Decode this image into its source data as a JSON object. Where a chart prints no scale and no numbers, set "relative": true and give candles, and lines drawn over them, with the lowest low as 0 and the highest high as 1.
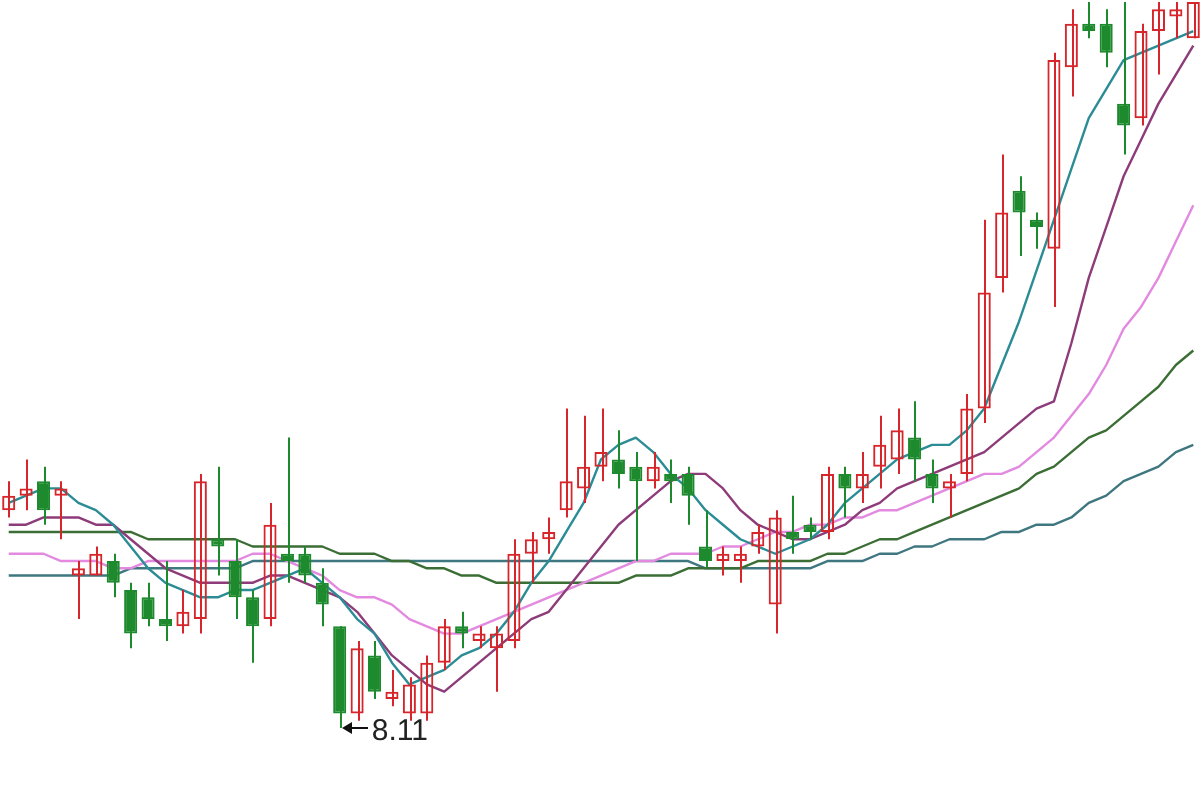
{
  "chart_data": {
    "type": "candlestick",
    "relative": true,
    "categories": [
      null,
      null,
      null,
      null,
      null,
      null,
      null,
      null,
      null,
      null,
      null,
      null,
      null,
      null,
      null,
      null,
      null,
      null,
      null,
      null,
      null,
      null,
      null,
      null,
      null,
      null,
      null,
      null,
      null,
      null,
      null,
      null,
      null,
      null,
      null,
      null,
      null,
      null,
      null,
      null,
      null,
      null,
      null,
      null,
      null,
      null,
      null,
      null,
      null,
      null,
      null,
      null,
      null,
      null,
      null,
      null,
      null,
      null,
      null,
      null,
      null,
      null,
      null,
      null,
      null,
      null,
      null,
      null,
      null
    ],
    "ohlc": [
      [
        0.3,
        0.34,
        0.29,
        0.32
      ],
      [
        0.32,
        0.37,
        0.3,
        0.33
      ],
      [
        0.34,
        0.36,
        0.28,
        0.3
      ],
      [
        0.32,
        0.34,
        0.26,
        0.33
      ],
      [
        0.21,
        0.23,
        0.15,
        0.22
      ],
      [
        0.21,
        0.25,
        0.21,
        0.24
      ],
      [
        0.23,
        0.24,
        0.18,
        0.2
      ],
      [
        0.19,
        0.2,
        0.11,
        0.13
      ],
      [
        0.18,
        0.2,
        0.14,
        0.15
      ],
      [
        0.15,
        0.23,
        0.12,
        0.14
      ],
      [
        0.14,
        0.19,
        0.13,
        0.16
      ],
      [
        0.15,
        0.35,
        0.13,
        0.34
      ],
      [
        0.26,
        0.36,
        0.21,
        0.25
      ],
      [
        0.23,
        0.26,
        0.15,
        0.18
      ],
      [
        0.18,
        0.19,
        0.09,
        0.14
      ],
      [
        0.15,
        0.31,
        0.14,
        0.28
      ],
      [
        0.24,
        0.4,
        0.2,
        0.23
      ],
      [
        0.24,
        0.25,
        0.2,
        0.21
      ],
      [
        0.2,
        0.22,
        0.14,
        0.17
      ],
      [
        0.14,
        0.14,
        0,
        0.02
      ],
      [
        0.02,
        0.12,
        0.01,
        0.11
      ],
      [
        0.1,
        0.12,
        0.04,
        0.05
      ],
      [
        0.04,
        0.08,
        0.03,
        0.05
      ],
      [
        0.02,
        0.07,
        0.01,
        0.06
      ],
      [
        0.02,
        0.1,
        0.01,
        0.09
      ],
      [
        0.09,
        0.15,
        0.08,
        0.14
      ],
      [
        0.14,
        0.16,
        0.11,
        0.13
      ],
      [
        0.12,
        0.14,
        0.11,
        0.13
      ],
      [
        0.11,
        0.14,
        0.05,
        0.13
      ],
      [
        0.12,
        0.26,
        0.11,
        0.24
      ],
      [
        0.24,
        0.27,
        0.2,
        0.26
      ],
      [
        0.26,
        0.29,
        0.24,
        0.27
      ],
      [
        0.3,
        0.44,
        0.29,
        0.34
      ],
      [
        0.33,
        0.43,
        0.31,
        0.36
      ],
      [
        0.36,
        0.44,
        0.34,
        0.38
      ],
      [
        0.37,
        0.41,
        0.33,
        0.35
      ],
      [
        0.36,
        0.38,
        0.23,
        0.34
      ],
      [
        0.34,
        0.38,
        0.33,
        0.36
      ],
      [
        0.35,
        0.37,
        0.31,
        0.34
      ],
      [
        0.35,
        0.36,
        0.28,
        0.32
      ],
      [
        0.25,
        0.3,
        0.22,
        0.23
      ],
      [
        0.23,
        0.25,
        0.21,
        0.24
      ],
      [
        0.23,
        0.25,
        0.2,
        0.24
      ],
      [
        0.25,
        0.28,
        0.24,
        0.27
      ],
      [
        0.17,
        0.3,
        0.13,
        0.29
      ],
      [
        0.27,
        0.32,
        0.24,
        0.26
      ],
      [
        0.28,
        0.29,
        0.26,
        0.27
      ],
      [
        0.27,
        0.36,
        0.26,
        0.35
      ],
      [
        0.35,
        0.36,
        0.29,
        0.33
      ],
      [
        0.33,
        0.38,
        0.31,
        0.35
      ],
      [
        0.36,
        0.43,
        0.33,
        0.39
      ],
      [
        0.37,
        0.44,
        0.35,
        0.41
      ],
      [
        0.4,
        0.45,
        0.34,
        0.37
      ],
      [
        0.35,
        0.37,
        0.31,
        0.33
      ],
      [
        0.33,
        0.35,
        0.29,
        0.34
      ],
      [
        0.35,
        0.46,
        0.34,
        0.44
      ],
      [
        0.44,
        0.7,
        0.42,
        0.6
      ],
      [
        0.62,
        0.79,
        0.6,
        0.71
      ],
      [
        0.74,
        0.76,
        0.65,
        0.71
      ],
      [
        0.7,
        0.71,
        0.66,
        0.69
      ],
      [
        0.66,
        0.93,
        0.58,
        0.92
      ],
      [
        0.91,
        0.99,
        0.87,
        0.97
      ],
      [
        0.97,
        1,
        0.95,
        0.96
      ],
      [
        0.97,
        0.99,
        0.91,
        0.93
      ],
      [
        0.86,
        1,
        0.79,
        0.83
      ],
      [
        0.84,
        0.97,
        0.83,
        0.96
      ],
      [
        0.96,
        1,
        0.9,
        0.99
      ],
      [
        0.98,
        1,
        0.95,
        0.99
      ],
      [
        0.95,
        1,
        0.95,
        1
      ]
    ],
    "colors": [
      "#d7262b",
      "#d7262b",
      "#1e8a2e",
      "#d7262b",
      "#d7262b",
      "#d7262b",
      "#1e8a2e",
      "#1e8a2e",
      "#1e8a2e",
      "#1e8a2e",
      "#d7262b",
      "#d7262b",
      "#1e8a2e",
      "#1e8a2e",
      "#1e8a2e",
      "#d7262b",
      "#1e8a2e",
      "#1e8a2e",
      "#1e8a2e",
      "#1e8a2e",
      "#d7262b",
      "#1e8a2e",
      "#d7262b",
      "#d7262b",
      "#d7262b",
      "#d7262b",
      "#1e8a2e",
      "#d7262b",
      "#d7262b",
      "#d7262b",
      "#d7262b",
      "#d7262b",
      "#d7262b",
      "#d7262b",
      "#d7262b",
      "#1e8a2e",
      "#1e8a2e",
      "#d7262b",
      "#1e8a2e",
      "#1e8a2e",
      "#1e8a2e",
      "#d7262b",
      "#d7262b",
      "#d7262b",
      "#d7262b",
      "#1e8a2e",
      "#1e8a2e",
      "#d7262b",
      "#1e8a2e",
      "#d7262b",
      "#d7262b",
      "#d7262b",
      "#1e8a2e",
      "#1e8a2e",
      "#d7262b",
      "#d7262b",
      "#d7262b",
      "#d7262b",
      "#1e8a2e",
      "#1e8a2e",
      "#d7262b",
      "#d7262b",
      "#1e8a2e",
      "#1e8a2e",
      "#1e8a2e",
      "#d7262b",
      "#d7262b",
      "#d7262b",
      "#d7262b"
    ],
    "series": [
      {
        "type": "line",
        "color": "#2b8c96",
        "values": [
          0.31,
          0.32,
          0.33,
          0.33,
          0.31,
          0.3,
          0.28,
          0.25,
          0.22,
          0.2,
          0.19,
          0.18,
          0.18,
          0.19,
          0.19,
          0.2,
          0.21,
          0.22,
          0.2,
          0.18,
          0.15,
          0.13,
          0.09,
          0.06,
          0.07,
          0.08,
          0.1,
          0.11,
          0.13,
          0.16,
          0.2,
          0.23,
          0.27,
          0.31,
          0.37,
          0.39,
          0.4,
          0.38,
          0.35,
          0.33,
          0.3,
          0.28,
          0.26,
          0.25,
          0.24,
          0.25,
          0.26,
          0.28,
          0.31,
          0.33,
          0.35,
          0.37,
          0.38,
          0.39,
          0.39,
          0.41,
          0.44,
          0.5,
          0.56,
          0.63,
          0.7,
          0.77,
          0.84,
          0.88,
          0.92,
          0.93,
          0.94,
          0.95,
          0.96
        ]
      },
      {
        "type": "line",
        "color": "#8e3b7a",
        "values": [
          0.28,
          0.28,
          0.29,
          0.29,
          0.29,
          0.28,
          0.28,
          0.26,
          0.24,
          0.22,
          0.21,
          0.2,
          0.2,
          0.2,
          0.2,
          0.21,
          0.21,
          0.2,
          0.19,
          0.18,
          0.16,
          0.13,
          0.1,
          0.08,
          0.06,
          0.05,
          0.07,
          0.09,
          0.11,
          0.13,
          0.15,
          0.16,
          0.19,
          0.22,
          0.25,
          0.28,
          0.3,
          0.32,
          0.34,
          0.35,
          0.35,
          0.33,
          0.3,
          0.28,
          0.27,
          0.26,
          0.26,
          0.27,
          0.28,
          0.3,
          0.31,
          0.33,
          0.34,
          0.35,
          0.36,
          0.37,
          0.38,
          0.4,
          0.42,
          0.44,
          0.45,
          0.53,
          0.62,
          0.69,
          0.76,
          0.81,
          0.86,
          0.9,
          0.94
        ]
      },
      {
        "type": "line",
        "color": "#e38ae0",
        "values": [
          0.24,
          0.24,
          0.24,
          0.23,
          0.23,
          0.23,
          0.22,
          0.22,
          0.23,
          0.23,
          0.23,
          0.23,
          0.23,
          0.23,
          0.24,
          0.24,
          0.23,
          0.22,
          0.21,
          0.19,
          0.18,
          0.18,
          0.17,
          0.15,
          0.14,
          0.13,
          0.13,
          0.14,
          0.15,
          0.16,
          0.17,
          0.18,
          0.19,
          0.2,
          0.21,
          0.22,
          0.23,
          0.23,
          0.24,
          0.24,
          0.24,
          0.25,
          0.25,
          0.26,
          0.27,
          0.27,
          0.28,
          0.28,
          0.29,
          0.29,
          0.3,
          0.3,
          0.31,
          0.32,
          0.33,
          0.34,
          0.35,
          0.35,
          0.36,
          0.38,
          0.4,
          0.43,
          0.46,
          0.5,
          0.55,
          0.58,
          0.62,
          0.67,
          0.72
        ]
      },
      {
        "type": "line",
        "color": "#3b6e35",
        "values": [
          0.27,
          0.27,
          0.27,
          0.27,
          0.27,
          0.27,
          0.27,
          0.27,
          0.26,
          0.26,
          0.26,
          0.26,
          0.26,
          0.26,
          0.25,
          0.25,
          0.25,
          0.25,
          0.25,
          0.24,
          0.24,
          0.24,
          0.23,
          0.23,
          0.22,
          0.22,
          0.21,
          0.21,
          0.2,
          0.2,
          0.2,
          0.2,
          0.2,
          0.2,
          0.2,
          0.2,
          0.21,
          0.21,
          0.21,
          0.22,
          0.22,
          0.22,
          0.22,
          0.23,
          0.23,
          0.23,
          0.23,
          0.24,
          0.24,
          0.25,
          0.26,
          0.26,
          0.27,
          0.28,
          0.29,
          0.3,
          0.31,
          0.32,
          0.33,
          0.35,
          0.36,
          0.38,
          0.4,
          0.41,
          0.43,
          0.45,
          0.47,
          0.5,
          0.52
        ]
      },
      {
        "type": "line",
        "color": "#3f7780",
        "values": [
          0.21,
          0.21,
          0.21,
          0.21,
          0.21,
          0.21,
          0.21,
          0.22,
          0.22,
          0.22,
          0.22,
          0.22,
          0.22,
          0.22,
          0.23,
          0.23,
          0.23,
          0.23,
          0.23,
          0.23,
          0.23,
          0.23,
          0.23,
          0.23,
          0.23,
          0.23,
          0.23,
          0.23,
          0.23,
          0.23,
          0.23,
          0.23,
          0.23,
          0.23,
          0.23,
          0.23,
          0.23,
          0.23,
          0.23,
          0.23,
          0.22,
          0.22,
          0.22,
          0.22,
          0.22,
          0.22,
          0.22,
          0.23,
          0.23,
          0.23,
          0.24,
          0.24,
          0.25,
          0.25,
          0.26,
          0.26,
          0.26,
          0.27,
          0.27,
          0.28,
          0.28,
          0.29,
          0.31,
          0.32,
          0.34,
          0.35,
          0.36,
          0.38,
          0.39
        ]
      }
    ],
    "annotations": [
      "8.11"
    ]
  }
}
